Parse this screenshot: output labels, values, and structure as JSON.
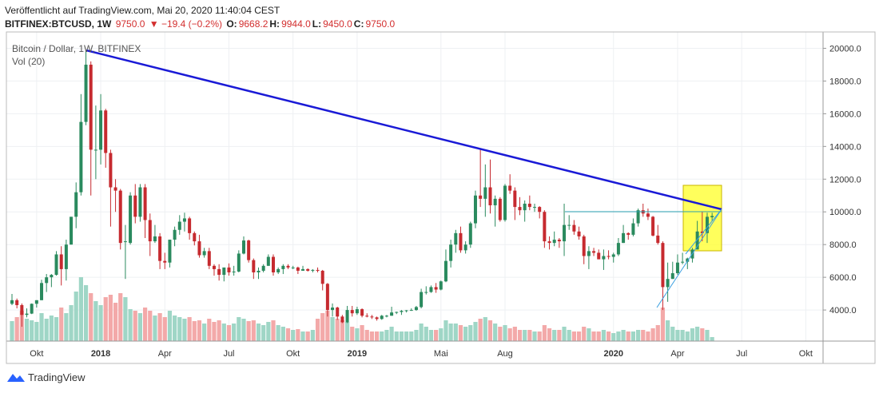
{
  "header": {
    "published": "Veröffentlicht auf TradingView.com, Mai 20, 2020 11:40:04 CEST",
    "symbol": "BITFINEX:BTCUSD, 1W",
    "last": "9750.0",
    "change": "▼ −19.4 (−0.2%)",
    "quote": [
      {
        "label": "O:",
        "value": "9668.2"
      },
      {
        "label": "H:",
        "value": "9944.0"
      },
      {
        "label": "L:",
        "value": "9450.0"
      },
      {
        "label": "C:",
        "value": "9750.0"
      }
    ]
  },
  "footer": {
    "brand": "TradingView"
  },
  "chart_data": {
    "type": "candlestick",
    "title": "Bitcoin / Dollar, 1W, BITFINEX",
    "volume_label": "Vol (20)",
    "up_color": "#2a8a5e",
    "down_color": "#c62a2f",
    "volume_up_color": "#9fd6c6",
    "volume_down_color": "#f3a9a9",
    "grid": true,
    "ylim": [
      2100,
      21000
    ],
    "yticks": [
      {
        "value": 4000,
        "label": "4000.0"
      },
      {
        "value": 6000,
        "label": "6000.0"
      },
      {
        "value": 8000,
        "label": "8000.0"
      },
      {
        "value": 10000,
        "label": "10000.0"
      },
      {
        "value": 12000,
        "label": "12000.0"
      },
      {
        "value": 14000,
        "label": "14000.0"
      },
      {
        "value": 16000,
        "label": "16000.0"
      },
      {
        "value": 18000,
        "label": "18000.0"
      },
      {
        "value": 20000,
        "label": "20000.0"
      }
    ],
    "volume_ylim": [
      0,
      100
    ],
    "categories": [
      null,
      null,
      null,
      null,
      null,
      "Okt",
      null,
      null,
      null,
      null,
      null,
      null,
      null,
      null,
      null,
      null,
      null,
      null,
      "2018",
      null,
      null,
      null,
      null,
      null,
      null,
      null,
      null,
      null,
      null,
      null,
      null,
      "Apr",
      null,
      null,
      null,
      null,
      null,
      null,
      null,
      null,
      null,
      null,
      null,
      null,
      "Jul",
      null,
      null,
      null,
      null,
      null,
      null,
      null,
      null,
      null,
      null,
      null,
      null,
      "Okt",
      null,
      null,
      null,
      null,
      null,
      null,
      null,
      null,
      null,
      null,
      null,
      null,
      "2019",
      null,
      null,
      null,
      null,
      null,
      null,
      null,
      null,
      null,
      null,
      null,
      null,
      null,
      null,
      null,
      null,
      "Mai",
      null,
      null,
      null,
      null,
      null,
      null,
      null,
      null,
      null,
      null,
      null,
      null,
      "Aug",
      null,
      null,
      null,
      null,
      null,
      null,
      null,
      null,
      null,
      null,
      null,
      null,
      null,
      null,
      null,
      null,
      null,
      null,
      null,
      null,
      null,
      "2020",
      null,
      null,
      null,
      null,
      null,
      null,
      null,
      null,
      null,
      null,
      null,
      null,
      "Apr",
      null,
      null,
      null,
      null,
      null,
      null,
      null,
      null,
      null,
      null,
      null,
      null,
      "Jul",
      null,
      null,
      null,
      null,
      null,
      null,
      null,
      null,
      null,
      null,
      null,
      null,
      "Okt",
      null,
      null,
      null
    ],
    "ohlc": [
      [
        4380,
        4980,
        4300,
        4600
      ],
      [
        4600,
        4700,
        4100,
        4300
      ],
      [
        4300,
        4400,
        2975,
        3700
      ],
      [
        3700,
        4100,
        3550,
        3780
      ],
      [
        3780,
        4400,
        3750,
        4380
      ],
      [
        4380,
        4600,
        4150,
        4600
      ],
      [
        4600,
        5850,
        4600,
        5650
      ],
      [
        5650,
        6200,
        5100,
        6000
      ],
      [
        6000,
        6200,
        5400,
        6150
      ],
      [
        6150,
        7600,
        6100,
        7400
      ],
      [
        7400,
        7900,
        5500,
        6500
      ],
      [
        6500,
        8300,
        5800,
        8000
      ],
      [
        8000,
        9700,
        8000,
        9700
      ],
      [
        9700,
        11800,
        9000,
        11200
      ],
      [
        11200,
        17200,
        11000,
        15500
      ],
      [
        15500,
        19900,
        15300,
        19000
      ],
      [
        19000,
        19200,
        11000,
        13800
      ],
      [
        13800,
        16500,
        12000,
        13800
      ],
      [
        13800,
        17200,
        12900,
        16200
      ],
      [
        16200,
        16300,
        12700,
        13600
      ],
      [
        13600,
        13800,
        9100,
        11500
      ],
      [
        11500,
        12000,
        10000,
        11300
      ],
      [
        11300,
        11400,
        7700,
        8100
      ],
      [
        8200,
        9200,
        5900,
        8200
      ],
      [
        8100,
        11200,
        8000,
        11000
      ],
      [
        11000,
        11700,
        9300,
        9700
      ],
      [
        9700,
        11700,
        9400,
        11500
      ],
      [
        11500,
        11700,
        8400,
        9500
      ],
      [
        9500,
        9900,
        7300,
        8200
      ],
      [
        8200,
        9200,
        8100,
        8500
      ],
      [
        8500,
        8700,
        6500,
        7000
      ],
      [
        7000,
        7500,
        6500,
        6900
      ],
      [
        6900,
        8300,
        6600,
        8300
      ],
      [
        8300,
        9100,
        7900,
        8900
      ],
      [
        8900,
        9800,
        8600,
        9400
      ],
      [
        9400,
        9950,
        8800,
        9600
      ],
      [
        9600,
        9700,
        8300,
        8700
      ],
      [
        8700,
        8800,
        7950,
        8200
      ],
      [
        8200,
        8600,
        7200,
        7350
      ],
      [
        7350,
        7800,
        7200,
        7600
      ],
      [
        7600,
        7800,
        6500,
        6700
      ],
      [
        6700,
        6800,
        6100,
        6500
      ],
      [
        6500,
        6800,
        5800,
        6150
      ],
      [
        6150,
        6500,
        5750,
        6600
      ],
      [
        6600,
        6850,
        6100,
        6300
      ],
      [
        6300,
        6700,
        6100,
        6350
      ],
      [
        6350,
        7650,
        6300,
        7450
      ],
      [
        7450,
        8500,
        7400,
        8250
      ],
      [
        8250,
        8300,
        6900,
        7050
      ],
      [
        7050,
        7150,
        5900,
        6300
      ],
      [
        6300,
        6600,
        5900,
        6400
      ],
      [
        6400,
        6800,
        6300,
        6700
      ],
      [
        6700,
        7400,
        6700,
        7250
      ],
      [
        7250,
        7400,
        6100,
        6300
      ],
      [
        6300,
        6600,
        6200,
        6500
      ],
      [
        6500,
        6800,
        6200,
        6700
      ],
      [
        6700,
        6800,
        6500,
        6600
      ],
      [
        6600,
        6700,
        6500,
        6600
      ],
      [
        6600,
        6650,
        6200,
        6400
      ],
      [
        6400,
        6700,
        6400,
        6500
      ],
      [
        6500,
        6550,
        6350,
        6400
      ],
      [
        6400,
        6500,
        6300,
        6450
      ],
      [
        6450,
        6600,
        6300,
        6400
      ],
      [
        6400,
        6450,
        5200,
        5600
      ],
      [
        5600,
        5650,
        3600,
        4000
      ],
      [
        4000,
        4400,
        3600,
        4150
      ],
      [
        4150,
        4200,
        3400,
        3600
      ],
      [
        3600,
        3700,
        3200,
        3250
      ],
      [
        3250,
        4250,
        3200,
        4000
      ],
      [
        4000,
        4250,
        3600,
        3800
      ],
      [
        3800,
        4200,
        3700,
        4050
      ],
      [
        4050,
        4100,
        3550,
        3650
      ],
      [
        3650,
        3800,
        3550,
        3600
      ],
      [
        3600,
        3700,
        3450,
        3550
      ],
      [
        3550,
        3600,
        3350,
        3450
      ],
      [
        3450,
        3700,
        3400,
        3650
      ],
      [
        3650,
        3700,
        3550,
        3650
      ],
      [
        3650,
        4200,
        3650,
        3850
      ],
      [
        3850,
        3900,
        3750,
        3880
      ],
      [
        3880,
        4000,
        3700,
        3950
      ],
      [
        3950,
        4000,
        3850,
        3980
      ],
      [
        3980,
        4100,
        3950,
        4000
      ],
      [
        4000,
        4250,
        3950,
        4180
      ],
      [
        4180,
        5300,
        4100,
        5100
      ],
      [
        5100,
        5450,
        4950,
        5100
      ],
      [
        5100,
        5500,
        5050,
        5400
      ],
      [
        5400,
        5650,
        5050,
        5250
      ],
      [
        5250,
        5800,
        5200,
        5750
      ],
      [
        5750,
        7700,
        5700,
        7000
      ],
      [
        7000,
        8300,
        6600,
        8000
      ],
      [
        8000,
        8900,
        7500,
        8700
      ],
      [
        8700,
        9100,
        7500,
        7650
      ],
      [
        7650,
        8200,
        7450,
        8000
      ],
      [
        8000,
        9400,
        7800,
        9300
      ],
      [
        9300,
        11300,
        9000,
        11000
      ],
      [
        11000,
        13800,
        10300,
        10800
      ],
      [
        10800,
        12900,
        9700,
        11500
      ],
      [
        11500,
        13200,
        9900,
        10400
      ],
      [
        10400,
        11000,
        9100,
        10800
      ],
      [
        10800,
        10900,
        9400,
        9500
      ],
      [
        9500,
        11700,
        9400,
        11600
      ],
      [
        11600,
        12300,
        11100,
        11300
      ],
      [
        11300,
        11500,
        9500,
        10300
      ],
      [
        10300,
        10900,
        9800,
        10100
      ],
      [
        10100,
        10700,
        9400,
        10500
      ],
      [
        10500,
        11000,
        10100,
        10300
      ],
      [
        10300,
        10500,
        10000,
        10300
      ],
      [
        10300,
        10350,
        9600,
        10000
      ],
      [
        10000,
        10100,
        7800,
        8200
      ],
      [
        8200,
        8500,
        7700,
        8100
      ],
      [
        8100,
        8800,
        7900,
        8300
      ],
      [
        8300,
        8400,
        7800,
        8200
      ],
      [
        8200,
        10500,
        7300,
        9200
      ],
      [
        9200,
        9800,
        8900,
        9200
      ],
      [
        9200,
        9500,
        8600,
        8800
      ],
      [
        8800,
        9100,
        8300,
        8500
      ],
      [
        8500,
        8600,
        6800,
        7300
      ],
      [
        7300,
        7900,
        6500,
        7600
      ],
      [
        7600,
        7800,
        7300,
        7500
      ],
      [
        7500,
        7700,
        7100,
        7100
      ],
      [
        7100,
        7700,
        6450,
        7300
      ],
      [
        7300,
        7650,
        7100,
        7250
      ],
      [
        7250,
        7500,
        6900,
        7400
      ],
      [
        7400,
        8400,
        7300,
        8100
      ],
      [
        8100,
        9200,
        8100,
        8700
      ],
      [
        8700,
        8750,
        8300,
        8600
      ],
      [
        8600,
        9600,
        8500,
        9300
      ],
      [
        9300,
        10200,
        9100,
        10100
      ],
      [
        10100,
        10500,
        9700,
        9900
      ],
      [
        9900,
        10200,
        9500,
        9700
      ],
      [
        9700,
        9750,
        8500,
        8550
      ],
      [
        8550,
        9200,
        8000,
        8100
      ],
      [
        8100,
        8200,
        4000,
        5400
      ],
      [
        5400,
        6900,
        4500,
        5900
      ],
      [
        5900,
        6950,
        5900,
        6250
      ],
      [
        6250,
        7400,
        6150,
        6900
      ],
      [
        6900,
        7500,
        6800,
        6950
      ],
      [
        6950,
        7200,
        6500,
        7150
      ],
      [
        7150,
        7800,
        6900,
        7700
      ],
      [
        7700,
        9450,
        7700,
        8800
      ],
      [
        8800,
        10000,
        8200,
        8700
      ],
      [
        8700,
        9950,
        8100,
        9700
      ],
      [
        9668.2,
        9944,
        9450,
        9750
      ],
      null,
      null,
      null,
      null,
      null,
      null,
      null,
      null,
      null,
      null,
      null,
      null,
      null,
      null,
      null,
      null,
      null,
      null,
      null,
      null,
      null,
      null
    ],
    "volume": [
      25,
      30,
      38,
      28,
      26,
      24,
      35,
      28,
      32,
      30,
      42,
      35,
      45,
      62,
      80,
      70,
      60,
      50,
      45,
      55,
      58,
      48,
      60,
      55,
      40,
      38,
      35,
      42,
      38,
      32,
      35,
      30,
      38,
      32,
      30,
      28,
      30,
      25,
      26,
      22,
      28,
      24,
      26,
      22,
      20,
      22,
      30,
      28,
      25,
      26,
      22,
      20,
      24,
      26,
      20,
      18,
      16,
      14,
      15,
      12,
      12,
      14,
      28,
      35,
      38,
      30,
      28,
      26,
      24,
      18,
      16,
      20,
      14,
      12,
      12,
      12,
      14,
      18,
      12,
      12,
      12,
      12,
      14,
      22,
      18,
      14,
      14,
      16,
      26,
      22,
      22,
      20,
      18,
      20,
      24,
      28,
      30,
      26,
      22,
      18,
      20,
      16,
      18,
      14,
      14,
      14,
      12,
      12,
      20,
      16,
      14,
      14,
      18,
      14,
      12,
      12,
      18,
      16,
      12,
      12,
      14,
      12,
      10,
      12,
      14,
      12,
      12,
      14,
      14,
      12,
      16,
      20,
      42,
      26,
      18,
      14,
      14,
      12,
      16,
      18,
      16,
      14,
      5,
      null,
      null,
      null,
      null,
      null,
      null,
      null,
      null,
      null,
      null,
      null,
      null,
      null,
      null,
      null,
      null,
      null,
      null,
      null,
      null,
      null,
      null
    ]
  }
}
